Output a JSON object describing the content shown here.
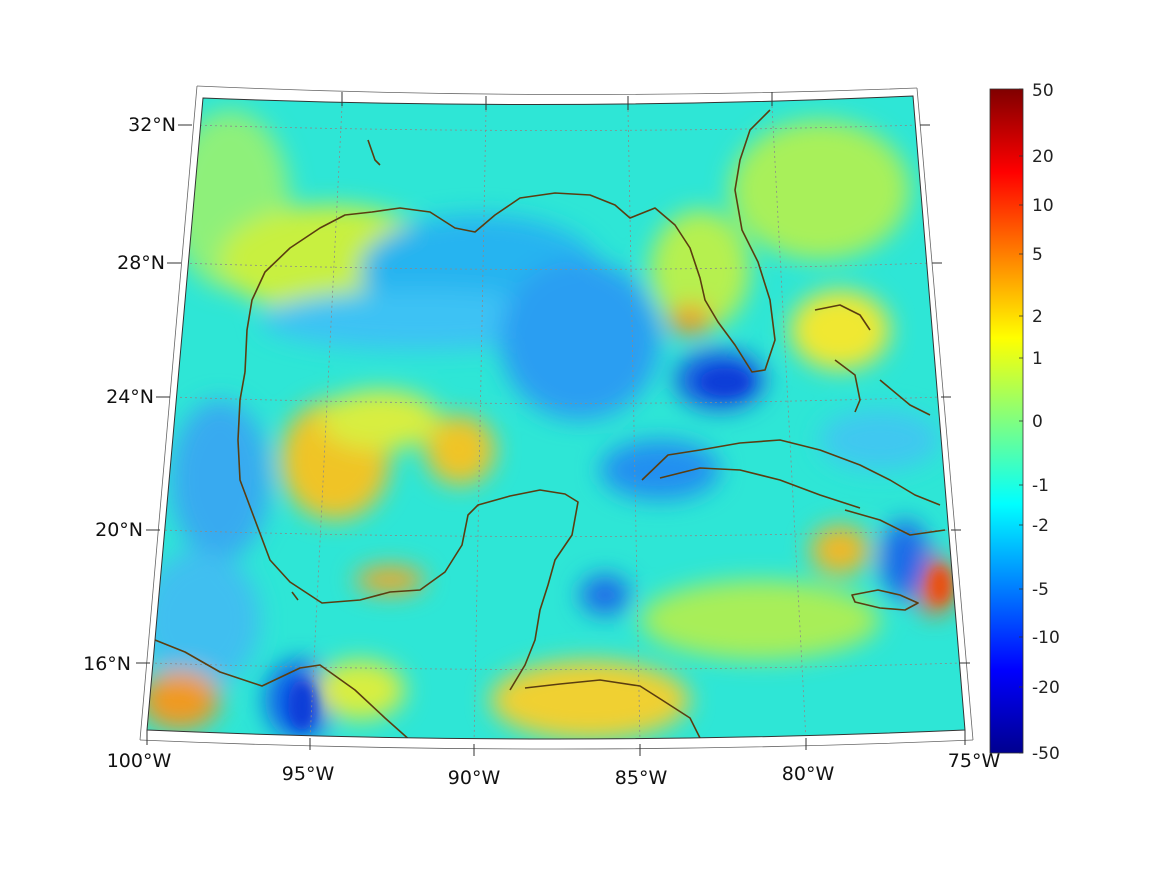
{
  "map": {
    "lon_labels": [
      "100°W",
      "95°W",
      "90°W",
      "85°W",
      "80°W",
      "75°W"
    ],
    "lat_labels": [
      "32°N",
      "28°N",
      "24°N",
      "20°N",
      "16°N"
    ],
    "coastline_color": "#5a3d10",
    "grid_style": "dotted"
  },
  "colorbar": {
    "tick_labels": [
      "50",
      "20",
      "10",
      "5",
      "2",
      "1",
      "0",
      "-1",
      "-2",
      "-5",
      "-10",
      "-20",
      "-50"
    ],
    "colormap": [
      "#00008f",
      "#0000ff",
      "#0080ff",
      "#00ffff",
      "#80ff80",
      "#ffff00",
      "#ff8000",
      "#ff0000",
      "#800000"
    ]
  }
}
